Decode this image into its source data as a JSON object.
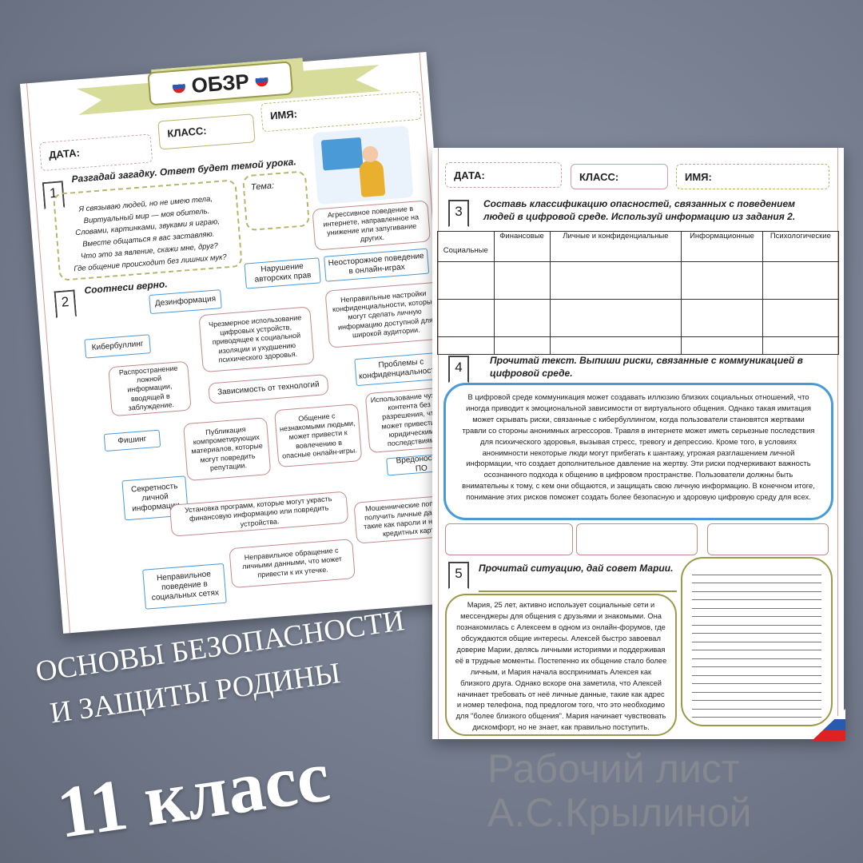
{
  "left_sheet": {
    "title": "ОБЗР",
    "fields": {
      "date": "ДАТА:",
      "class": "КЛАСС:",
      "name": "ИМЯ:"
    },
    "task1": {
      "number": "1",
      "title": "Разгадай загадку. Ответ будет темой урока.",
      "poem": [
        "Я связываю людей, но не имею тела,",
        "Виртуальный мир — моя обитель.",
        "Словами, картинками, звуками я играю,",
        "Вместе общаться я вас заставляю.",
        "Что это за явление, скажи мне, друг?",
        "Где общение происходит без лишних мук?"
      ],
      "topic_label": "Тема:"
    },
    "task2": {
      "number": "2",
      "title": "Соотнеси верно.",
      "terms": [
        "Дезинформация",
        "Нарушение авторских прав",
        "Неосторожное поведение в онлайн-играх",
        "Кибербуллинг",
        "Зависимость от технологий",
        "Проблемы с конфиденциальностью",
        "Фишинг",
        "Секретность личной информации",
        "Вредоносное ПО",
        "Неправильное поведение в социальных сетях"
      ],
      "definitions": [
        "Агрессивное поведение в интернете, направленное на унижение или запугивание других.",
        "Чрезмерное использование цифровых устройств, приводящее к социальной изоляции и ухудшению психического здоровья.",
        "Неправильные настройки конфиденциальности, которые могут сделать личную информацию доступной для широкой аудитории.",
        "Распространение ложной информации, вводящей в заблуждение.",
        "Публикация компрометирующих материалов, которые могут повредить репутации.",
        "Общение с незнакомыми людьми, может привести к вовлечению в опасные онлайн-игры.",
        "Использование чужого контента без разрешения, что может привести к юридическим последствиям.",
        "Установка программ, которые могут украсть финансовую информацию или повредить устройства.",
        "Мошеннические попытки получить личные данные, такие как пароли и номера кредитных карт.",
        "Неправильное обращение с личными данными, что может привести к их утечке."
      ]
    }
  },
  "right_sheet": {
    "fields": {
      "date": "ДАТА:",
      "class": "КЛАСС:",
      "name": "ИМЯ:"
    },
    "task3": {
      "number": "3",
      "title": "Составь классификацию опасностей, связанных с поведением людей в цифровой среде. Используй информацию из задания 2.",
      "columns": [
        "Социальные",
        "Финансовые",
        "Личные и конфиденциальные",
        "Информационные",
        "Психологические"
      ]
    },
    "task4": {
      "number": "4",
      "title": "Прочитай текст. Выпиши риски, связанные  с коммуникацией в цифровой среде.",
      "text": "В цифровой среде коммуникация может создавать иллюзию близких социальных отношений, что иногда приводит к эмоциональной зависимости от виртуального общения. Однако такая имитация может скрывать риски, связанные с кибербуллингом, когда пользователи становятся жертвами травли со стороны анонимных агрессоров. Травля в интернете может иметь серьезные последствия для психического здоровья, вызывая стресс, тревогу и депрессию. Кроме того, в условиях анонимности некоторые люди могут прибегать к шантажу, угрожая разглашением личной информации, что создает дополнительное давление на жертву. Эти риски подчеркивают важность осознанного подхода к общению в цифровом пространстве. Пользователи должны быть внимательны к тому, с кем они общаются, и защищать свою личную информацию. В конечном итоге, понимание этих рисков поможет создать более безопасную и здоровую цифровую среду для всех."
    },
    "task5": {
      "number": "5",
      "title": "Прочитай ситуацию, дай совет Марии.",
      "text": "Мария, 25 лет, активно использует социальные сети и мессенджеры для общения с друзьями и знакомыми. Она познакомилась с Алексеем в одном из онлайн-форумов, где обсуждаются общие интересы. Алексей быстро завоевал доверие Марии, делясь личными историями и поддерживая её в трудные моменты. Постепенно их общение стало более личным, и Мария начала воспринимать Алексея как близкого друга. Однако вскоре она заметила, что Алексей начинает требовать от неё личные данные, такие как адрес и номер телефона, под предлогом того, что это необходимо для \"более близкого общения\". Мария начинает чувствовать дискомфорт, но не знает, как правильно поступить."
    }
  },
  "watermark": "Рабочий лист А.С.Крылиной",
  "cover": {
    "subject_line1": "ОСНОВЫ БЕЗОПАСНОСТИ",
    "subject_line2": "И ЗАЩИТЫ РОДИНЫ",
    "grade": "11 класс"
  },
  "colors": {
    "accent_blue": "#4a9ad8",
    "accent_pink": "#c48a8a",
    "accent_olive": "#b7b56a",
    "banner": "#d8dc9a"
  }
}
